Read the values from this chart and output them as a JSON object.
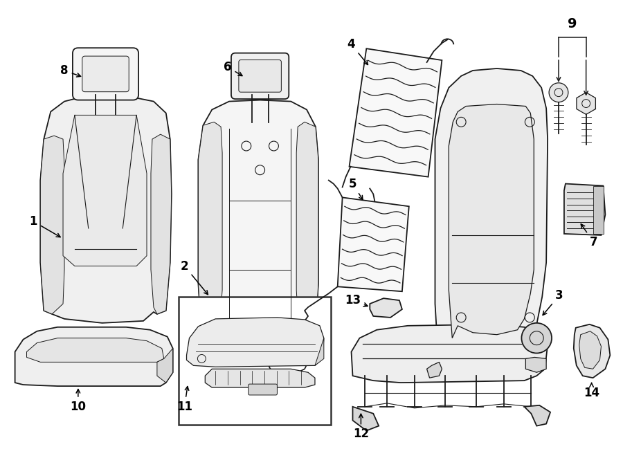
{
  "background_color": "#ffffff",
  "line_color": "#1a1a1a",
  "figsize": [
    9.0,
    6.62
  ],
  "dpi": 100,
  "label_fontsize": 12
}
